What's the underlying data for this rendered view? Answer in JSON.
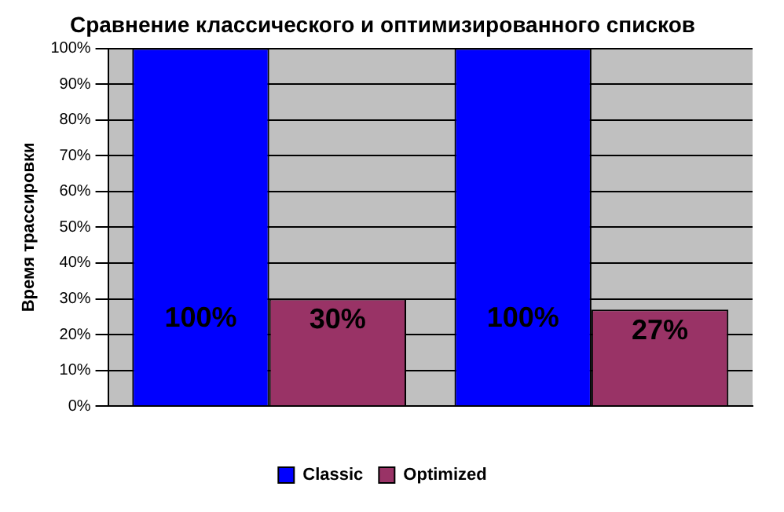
{
  "chart_data": {
    "type": "bar",
    "title": "Сравнение классического и оптимизированного списков",
    "ylabel": "Время трассировки",
    "categories": [
      null,
      null
    ],
    "series": [
      {
        "name": "Classic",
        "color": "#0000ff",
        "values": [
          100,
          100
        ],
        "value_labels": [
          "100%",
          "100%"
        ]
      },
      {
        "name": "Optimized",
        "color": "#993366",
        "values": [
          30,
          27
        ],
        "value_labels": [
          "30%",
          "27%"
        ]
      }
    ],
    "ylim": [
      0,
      100
    ],
    "yticks": [
      {
        "value": 0,
        "label": "0%"
      },
      {
        "value": 10,
        "label": "10%"
      },
      {
        "value": 20,
        "label": "20%"
      },
      {
        "value": 30,
        "label": "30%"
      },
      {
        "value": 40,
        "label": "40%"
      },
      {
        "value": 50,
        "label": "50%"
      },
      {
        "value": 60,
        "label": "60%"
      },
      {
        "value": 70,
        "label": "70%"
      },
      {
        "value": 80,
        "label": "80%"
      },
      {
        "value": 90,
        "label": "90%"
      },
      {
        "value": 100,
        "label": "100%"
      }
    ],
    "grid": "y",
    "legend": "bottom"
  }
}
